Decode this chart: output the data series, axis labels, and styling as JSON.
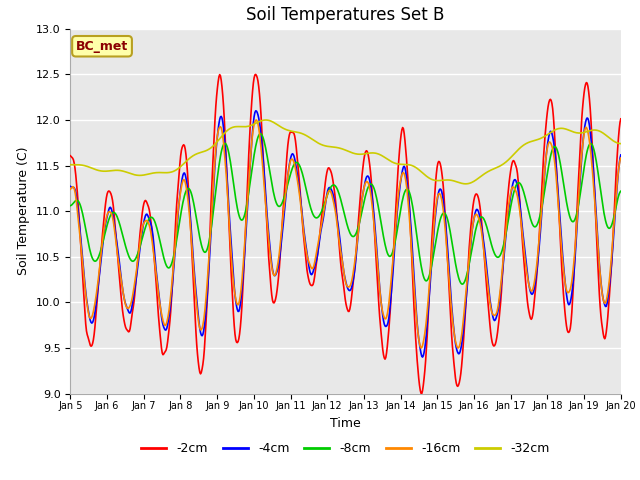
{
  "title": "Soil Temperatures Set B",
  "xlabel": "Time",
  "ylabel": "Soil Temperature (C)",
  "annotation": "BC_met",
  "ylim": [
    9.0,
    13.0
  ],
  "yticks": [
    9.0,
    9.5,
    10.0,
    10.5,
    11.0,
    11.5,
    12.0,
    12.5,
    13.0
  ],
  "colors": {
    "-2cm": "#ff0000",
    "-4cm": "#0000ff",
    "-8cm": "#00cc00",
    "-16cm": "#ff8800",
    "-32cm": "#cccc00"
  },
  "bg_color": "#e8e8e8",
  "tick_labels": [
    "Jan 5",
    "Jan 6",
    "Jan 7",
    "Jan 8",
    "Jan 9",
    "Jan 10",
    "Jan 11",
    "Jan 12",
    "Jan 13",
    "Jan 14",
    "Jan 15",
    "Jan 16",
    "Jan 17",
    "Jan 18",
    "Jan 19",
    "Jan 20"
  ],
  "n_points": 720
}
